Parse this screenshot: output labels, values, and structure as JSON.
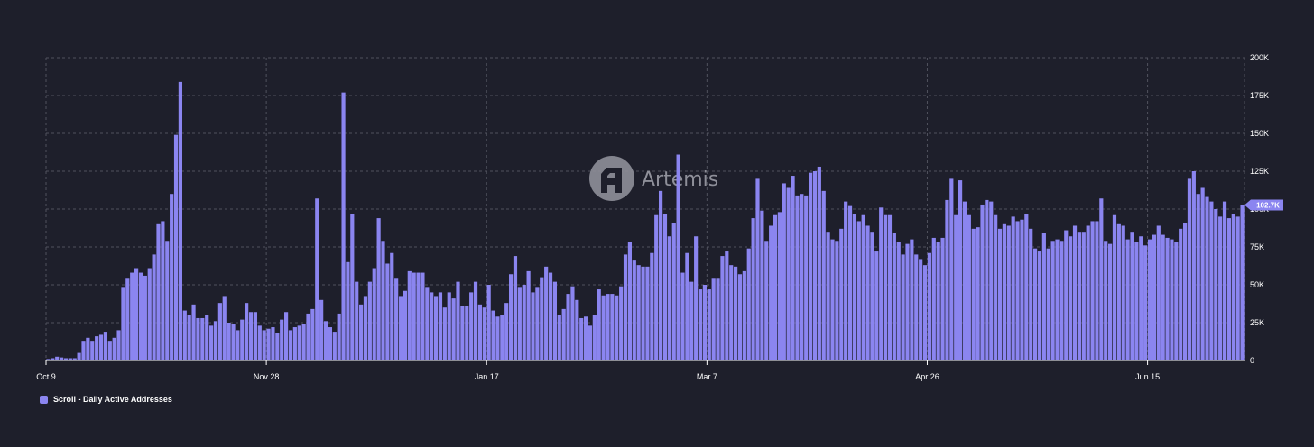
{
  "brand": {
    "name": "Artemis",
    "logo_icon": "artemis-logo-icon"
  },
  "colors": {
    "background": "#1e1f2b",
    "bar": "#8b85f0",
    "grid": "#50525e",
    "callout": "#8b85f0"
  },
  "chart_data": {
    "type": "bar",
    "title": "",
    "xlabel": "",
    "ylabel": "",
    "ylim": [
      0,
      200000
    ],
    "y_ticks": [
      0,
      25000,
      50000,
      75000,
      100000,
      125000,
      150000,
      175000,
      200000
    ],
    "y_tick_labels": [
      "0",
      "25K",
      "50K",
      "75K",
      "100K",
      "125K",
      "150K",
      "175K",
      "200K"
    ],
    "x_start": "Oct 9",
    "x_tick_labels": [
      "Oct 9",
      "Nov 28",
      "Jan 17",
      "Mar 7",
      "Apr 26",
      "Jun 15"
    ],
    "x_tick_interval_days": 50,
    "grid": true,
    "legend_position": "bottom-left",
    "last_value_label": "102.7K",
    "series": [
      {
        "name": "Scroll - Daily Active Addresses",
        "values": [
          1000,
          1500,
          2500,
          2000,
          1500,
          1500,
          1500,
          5000,
          13000,
          15000,
          13000,
          16000,
          17000,
          19000,
          13000,
          15000,
          20000,
          48000,
          54000,
          58000,
          61000,
          58000,
          56000,
          61000,
          70000,
          90000,
          92000,
          79000,
          110000,
          149000,
          184000,
          33000,
          30000,
          37000,
          28000,
          28000,
          30000,
          23000,
          26000,
          38000,
          42000,
          25000,
          24000,
          20000,
          27000,
          38000,
          32000,
          32000,
          23000,
          20000,
          21000,
          22000,
          18000,
          27000,
          32000,
          20000,
          22000,
          23000,
          24000,
          31000,
          34000,
          107000,
          40000,
          26000,
          22000,
          19000,
          31000,
          177000,
          65000,
          97000,
          52000,
          37000,
          42000,
          52000,
          61000,
          94000,
          79000,
          64000,
          71000,
          54000,
          42000,
          46000,
          59000,
          58000,
          58000,
          58000,
          48000,
          45000,
          42000,
          45000,
          35000,
          45000,
          41000,
          52000,
          36000,
          36000,
          45000,
          52000,
          37000,
          35000,
          50000,
          33000,
          29000,
          30000,
          38000,
          57000,
          69000,
          48000,
          50000,
          59000,
          45000,
          48000,
          55000,
          62000,
          58000,
          52000,
          30000,
          34000,
          44000,
          49000,
          40000,
          28000,
          29000,
          23000,
          30000,
          47000,
          43000,
          44000,
          44000,
          43000,
          49000,
          70000,
          78000,
          66000,
          63000,
          62000,
          62000,
          71000,
          96000,
          112000,
          97000,
          82000,
          91000,
          136000,
          58000,
          71000,
          52000,
          82000,
          47000,
          50000,
          47000,
          54000,
          54000,
          69000,
          72000,
          63000,
          62000,
          57000,
          59000,
          74000,
          94000,
          120000,
          99000,
          79000,
          89000,
          96000,
          98000,
          117000,
          114000,
          122000,
          109000,
          110000,
          109000,
          124000,
          125000,
          128000,
          112000,
          85000,
          80000,
          79000,
          87000,
          105000,
          102000,
          97000,
          92000,
          96000,
          89000,
          85000,
          72000,
          101000,
          96000,
          96000,
          84000,
          78000,
          70000,
          77000,
          80000,
          70000,
          67000,
          63000,
          71000,
          81000,
          78000,
          81000,
          106000,
          120000,
          96000,
          119000,
          105000,
          96000,
          87000,
          88000,
          103000,
          106000,
          105000,
          96000,
          87000,
          90000,
          89000,
          95000,
          92000,
          93000,
          97000,
          87000,
          74000,
          72000,
          84000,
          74000,
          79000,
          80000,
          79000,
          86000,
          82000,
          89000,
          85000,
          85000,
          89000,
          92000,
          92000,
          107000,
          79000,
          77000,
          96000,
          90000,
          89000,
          80000,
          85000,
          78000,
          82000,
          76000,
          80000,
          83000,
          89000,
          83000,
          81000,
          80000,
          78000,
          87000,
          91000,
          120000,
          125000,
          110000,
          114000,
          108000,
          105000,
          100000,
          95000,
          105000,
          94000,
          97000,
          95000,
          102700
        ]
      }
    ]
  }
}
